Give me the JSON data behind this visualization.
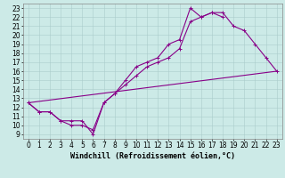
{
  "xlabel": "Windchill (Refroidissement éolien,°C)",
  "bg_color": "#cceae7",
  "grid_color": "#aacccc",
  "line_color": "#880088",
  "xlim": [
    -0.5,
    23.5
  ],
  "ylim": [
    8.5,
    23.5
  ],
  "xticks": [
    0,
    1,
    2,
    3,
    4,
    5,
    6,
    7,
    8,
    9,
    10,
    11,
    12,
    13,
    14,
    15,
    16,
    17,
    18,
    19,
    20,
    21,
    22,
    23
  ],
  "yticks": [
    9,
    10,
    11,
    12,
    13,
    14,
    15,
    16,
    17,
    18,
    19,
    20,
    21,
    22,
    23
  ],
  "line1_x": [
    0,
    1,
    2,
    3,
    4,
    5,
    6,
    7,
    8,
    9,
    10,
    11,
    12,
    13,
    14,
    15,
    16,
    17,
    18,
    19,
    20,
    21,
    22,
    23
  ],
  "line1_y": [
    12.5,
    11.5,
    11.5,
    10.5,
    10.0,
    10.0,
    9.5,
    12.5,
    13.5,
    15.0,
    16.5,
    17.0,
    17.5,
    19.0,
    19.5,
    23.0,
    22.0,
    22.5,
    22.5,
    21.0,
    20.5,
    19.0,
    17.5,
    16.0
  ],
  "line2_x": [
    0,
    1,
    2,
    3,
    4,
    5,
    6,
    7,
    8,
    9,
    10,
    11,
    12,
    13,
    14,
    15,
    16,
    17,
    18
  ],
  "line2_y": [
    12.5,
    11.5,
    11.5,
    10.5,
    10.5,
    10.5,
    9.0,
    12.5,
    13.5,
    14.5,
    15.5,
    16.5,
    17.0,
    17.5,
    18.5,
    21.5,
    22.0,
    22.5,
    22.0
  ],
  "line3_x": [
    0,
    23
  ],
  "line3_y": [
    12.5,
    16.0
  ],
  "marker_size": 2.5,
  "linewidth": 0.8,
  "xlabel_fontsize": 6,
  "tick_fontsize": 5.5
}
